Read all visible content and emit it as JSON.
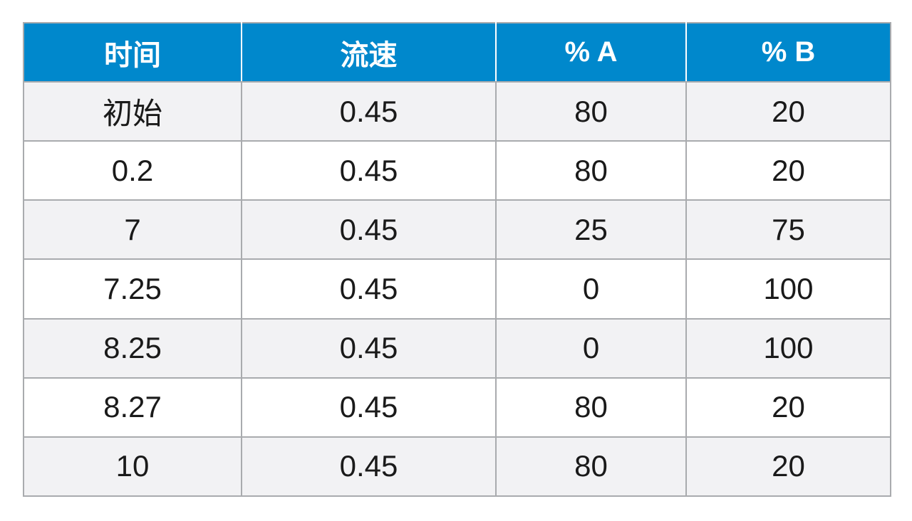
{
  "chart_data": {
    "type": "table",
    "columns": [
      "时间",
      "流速",
      "% A",
      "% B"
    ],
    "rows": [
      [
        "初始",
        "0.45",
        "80",
        "20"
      ],
      [
        "0.2",
        "0.45",
        "80",
        "20"
      ],
      [
        "7",
        "0.45",
        "25",
        "75"
      ],
      [
        "7.25",
        "0.45",
        "0",
        "100"
      ],
      [
        "8.25",
        "0.45",
        "0",
        "100"
      ],
      [
        "8.27",
        "0.45",
        "80",
        "20"
      ],
      [
        "10",
        "0.45",
        "80",
        "20"
      ]
    ]
  },
  "colors": {
    "header_bg": "#0088cc",
    "header_text": "#ffffff",
    "row_shaded": "#f2f2f4",
    "row_plain": "#ffffff",
    "border": "#a9abae"
  }
}
